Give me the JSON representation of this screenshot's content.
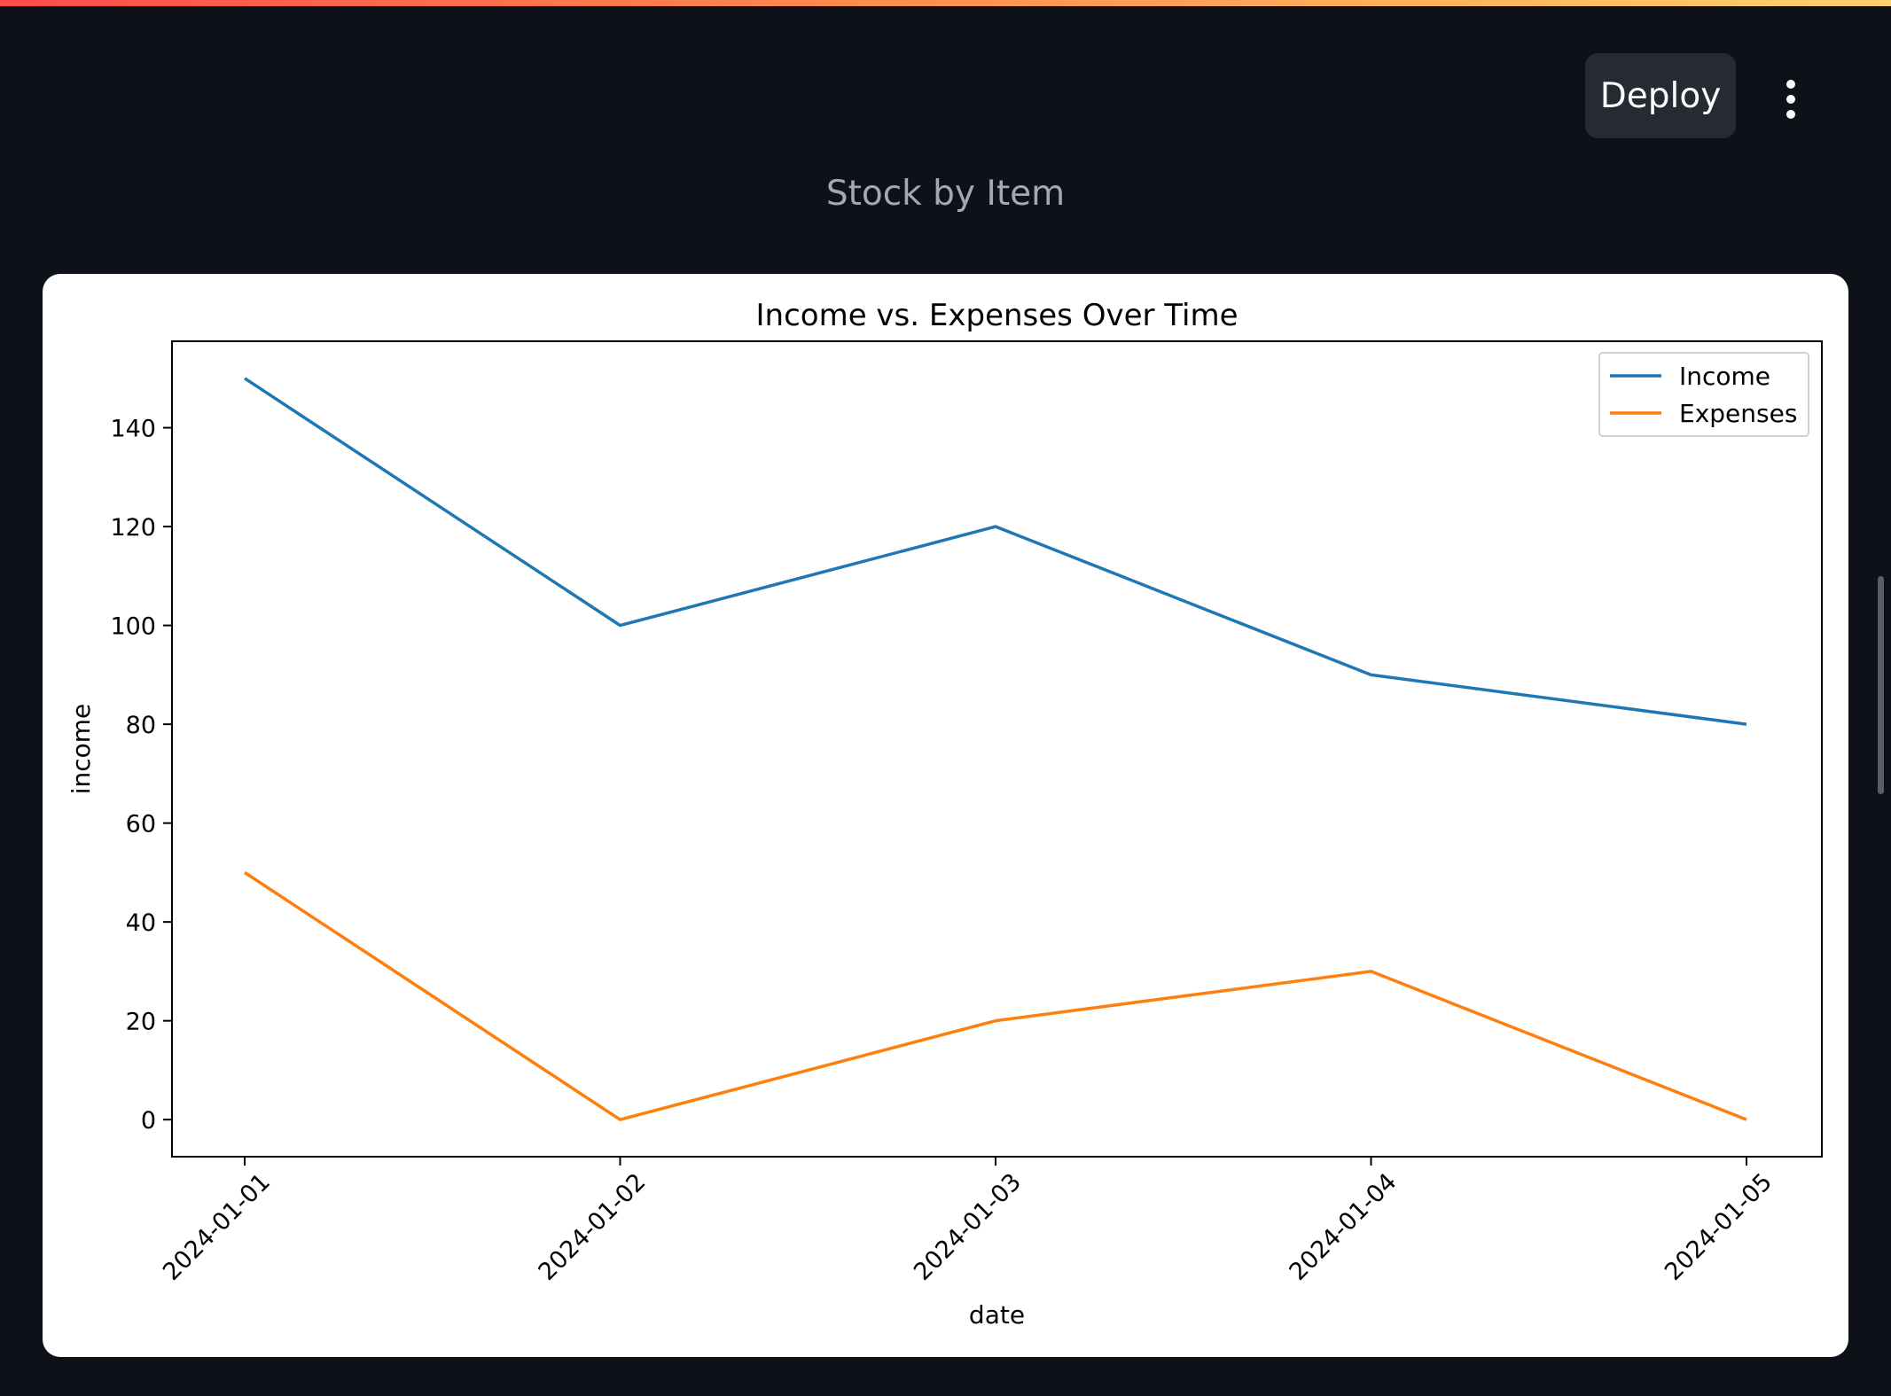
{
  "header": {
    "deploy_label": "Deploy",
    "menu_icon": "kebab-menu-icon"
  },
  "caption": "Stock by Item",
  "colors": {
    "background": "#0e1117",
    "income": "#1f77b4",
    "expenses": "#ff7f0e"
  },
  "chart_data": {
    "type": "line",
    "title": "Income vs. Expenses Over Time",
    "xlabel": "date",
    "ylabel": "income",
    "categories": [
      "2024-01-01",
      "2024-01-02",
      "2024-01-03",
      "2024-01-04",
      "2024-01-05"
    ],
    "series": [
      {
        "name": "Income",
        "values": [
          150,
          100,
          120,
          90,
          80
        ],
        "color": "#1f77b4"
      },
      {
        "name": "Expenses",
        "values": [
          50,
          0,
          20,
          30,
          0
        ],
        "color": "#ff7f0e"
      }
    ],
    "yticks": [
      0,
      20,
      40,
      60,
      80,
      100,
      120,
      140
    ],
    "ylim": [
      -7.5,
      157.5
    ],
    "grid": false,
    "legend": "top-right"
  }
}
